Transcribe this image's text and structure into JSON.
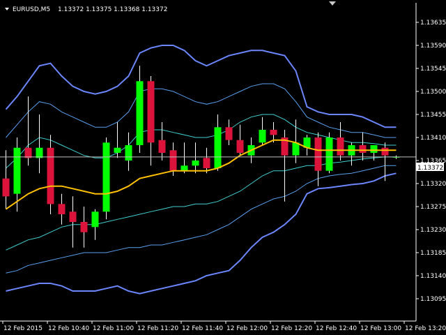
{
  "header": {
    "symbol": "EURUSD,M5",
    "ohlc": "1.13372 1.13375 1.13368 1.13372"
  },
  "current_price_label": "1.13372",
  "colors": {
    "background": "#000000",
    "axis": "#ffffff",
    "bull": "#00ff00",
    "bear": "#dc143c",
    "wick": "#ffffff",
    "ma": "#ffc000",
    "band_outer": "#6b86ff",
    "band_mid": "#5aa0f0",
    "band_inner": "#40d0d0",
    "price_line": "#c0c0c0"
  },
  "chart_data": {
    "type": "candlestick",
    "ylim": [
      1.13065,
      1.13665
    ],
    "y_ticks": [
      "1.13635",
      "1.13590",
      "1.13545",
      "1.13500",
      "1.13455",
      "1.13410",
      "1.13365",
      "1.13320",
      "1.13275",
      "1.13230",
      "1.13185",
      "1.13140",
      "1.13095"
    ],
    "x_labels": [
      "12 Feb 2015",
      "12 Feb 10:40",
      "12 Feb 11:00",
      "12 Feb 11:20",
      "12 Feb 11:40",
      "12 Feb 12:00",
      "12 Feb 12:20",
      "12 Feb 12:40",
      "12 Feb 13:00",
      "12 Feb 13:20"
    ],
    "grid": false,
    "candles": [
      {
        "o": 1.1333,
        "h": 1.13385,
        "l": 1.1327,
        "c": 1.13295
      },
      {
        "o": 1.133,
        "h": 1.1341,
        "l": 1.13265,
        "c": 1.1339
      },
      {
        "o": 1.1339,
        "h": 1.1349,
        "l": 1.13355,
        "c": 1.1337
      },
      {
        "o": 1.1337,
        "h": 1.13455,
        "l": 1.1334,
        "c": 1.1339
      },
      {
        "o": 1.1339,
        "h": 1.13415,
        "l": 1.1326,
        "c": 1.1328
      },
      {
        "o": 1.1328,
        "h": 1.133,
        "l": 1.1324,
        "c": 1.1326
      },
      {
        "o": 1.13265,
        "h": 1.13295,
        "l": 1.13195,
        "c": 1.13245
      },
      {
        "o": 1.13245,
        "h": 1.13275,
        "l": 1.13195,
        "c": 1.13225
      },
      {
        "o": 1.13235,
        "h": 1.1327,
        "l": 1.1321,
        "c": 1.13265
      },
      {
        "o": 1.13265,
        "h": 1.1341,
        "l": 1.1325,
        "c": 1.134
      },
      {
        "o": 1.1338,
        "h": 1.1344,
        "l": 1.1337,
        "c": 1.1339
      },
      {
        "o": 1.13365,
        "h": 1.1342,
        "l": 1.13345,
        "c": 1.13395
      },
      {
        "o": 1.13395,
        "h": 1.1355,
        "l": 1.1338,
        "c": 1.1352
      },
      {
        "o": 1.1352,
        "h": 1.1353,
        "l": 1.13355,
        "c": 1.134
      },
      {
        "o": 1.13405,
        "h": 1.1344,
        "l": 1.13365,
        "c": 1.1338
      },
      {
        "o": 1.13385,
        "h": 1.134,
        "l": 1.13335,
        "c": 1.13345
      },
      {
        "o": 1.13345,
        "h": 1.134,
        "l": 1.1334,
        "c": 1.13355
      },
      {
        "o": 1.13355,
        "h": 1.134,
        "l": 1.1334,
        "c": 1.13365
      },
      {
        "o": 1.1337,
        "h": 1.1339,
        "l": 1.1334,
        "c": 1.1335
      },
      {
        "o": 1.1335,
        "h": 1.13455,
        "l": 1.13345,
        "c": 1.1343
      },
      {
        "o": 1.1343,
        "h": 1.13445,
        "l": 1.13395,
        "c": 1.13405
      },
      {
        "o": 1.13405,
        "h": 1.13435,
        "l": 1.13375,
        "c": 1.1338
      },
      {
        "o": 1.13375,
        "h": 1.1341,
        "l": 1.1336,
        "c": 1.13395
      },
      {
        "o": 1.134,
        "h": 1.1345,
        "l": 1.13395,
        "c": 1.13425
      },
      {
        "o": 1.13425,
        "h": 1.1344,
        "l": 1.134,
        "c": 1.13415
      },
      {
        "o": 1.1341,
        "h": 1.13425,
        "l": 1.13285,
        "c": 1.13375
      },
      {
        "o": 1.13375,
        "h": 1.13445,
        "l": 1.1336,
        "c": 1.134
      },
      {
        "o": 1.1339,
        "h": 1.13415,
        "l": 1.13375,
        "c": 1.1341
      },
      {
        "o": 1.1341,
        "h": 1.1342,
        "l": 1.13315,
        "c": 1.13345
      },
      {
        "o": 1.13345,
        "h": 1.1342,
        "l": 1.1334,
        "c": 1.1341
      },
      {
        "o": 1.1341,
        "h": 1.1344,
        "l": 1.13365,
        "c": 1.13375
      },
      {
        "o": 1.13375,
        "h": 1.134,
        "l": 1.13355,
        "c": 1.13395
      },
      {
        "o": 1.13395,
        "h": 1.1342,
        "l": 1.13365,
        "c": 1.1338
      },
      {
        "o": 1.1338,
        "h": 1.13395,
        "l": 1.13365,
        "c": 1.13395
      },
      {
        "o": 1.1339,
        "h": 1.134,
        "l": 1.13325,
        "c": 1.13375
      },
      {
        "o": 1.13372,
        "h": 1.13375,
        "l": 1.13368,
        "c": 1.13372
      }
    ],
    "ma": [
      1.1327,
      1.13285,
      1.133,
      1.1331,
      1.13315,
      1.13315,
      1.1331,
      1.13305,
      1.133,
      1.133,
      1.13305,
      1.13315,
      1.1333,
      1.13335,
      1.1334,
      1.13345,
      1.13345,
      1.13345,
      1.13345,
      1.1335,
      1.1336,
      1.13375,
      1.13385,
      1.13395,
      1.13405,
      1.13405,
      1.134,
      1.1339,
      1.13385,
      1.13385,
      1.13385,
      1.13385,
      1.13385,
      1.13385,
      1.13385,
      1.13385
    ],
    "band_upper_outer": [
      1.13465,
      1.1349,
      1.1352,
      1.1355,
      1.13555,
      1.1353,
      1.1351,
      1.135,
      1.13495,
      1.135,
      1.1351,
      1.1353,
      1.13575,
      1.13585,
      1.1359,
      1.1359,
      1.1358,
      1.1356,
      1.1355,
      1.1356,
      1.1357,
      1.13575,
      1.1358,
      1.1358,
      1.13575,
      1.1357,
      1.1354,
      1.1347,
      1.1346,
      1.13455,
      1.13455,
      1.13455,
      1.1345,
      1.1344,
      1.1343,
      1.1343
    ],
    "band_upper_mid": [
      1.1341,
      1.13435,
      1.1346,
      1.1348,
      1.13475,
      1.1346,
      1.1345,
      1.1344,
      1.1343,
      1.1343,
      1.1344,
      1.1346,
      1.135,
      1.13505,
      1.13505,
      1.135,
      1.1349,
      1.1348,
      1.13475,
      1.1348,
      1.1349,
      1.135,
      1.1351,
      1.13515,
      1.13515,
      1.13505,
      1.1348,
      1.1345,
      1.1344,
      1.1343,
      1.13425,
      1.1342,
      1.1342,
      1.13415,
      1.1341,
      1.1341
    ],
    "band_upper_inner": [
      1.1335,
      1.1337,
      1.13395,
      1.1341,
      1.13405,
      1.13395,
      1.13385,
      1.13375,
      1.1337,
      1.1337,
      1.1338,
      1.13395,
      1.1342,
      1.13425,
      1.13425,
      1.1342,
      1.13415,
      1.1341,
      1.1341,
      1.13415,
      1.13425,
      1.1344,
      1.1345,
      1.13455,
      1.13455,
      1.13445,
      1.1343,
      1.1342,
      1.13415,
      1.1341,
      1.13405,
      1.134,
      1.134,
      1.13398,
      1.13395,
      1.13395
    ],
    "band_lower_inner": [
      1.1319,
      1.132,
      1.1321,
      1.13215,
      1.13225,
      1.13235,
      1.1324,
      1.1324,
      1.1324,
      1.13245,
      1.1325,
      1.13255,
      1.1326,
      1.13265,
      1.1327,
      1.13275,
      1.13275,
      1.1328,
      1.1328,
      1.13285,
      1.13295,
      1.13305,
      1.1332,
      1.13335,
      1.13345,
      1.13345,
      1.1335,
      1.13355,
      1.13355,
      1.1336,
      1.13362,
      1.13365,
      1.13368,
      1.1337,
      1.13372,
      1.13372
    ],
    "band_lower_mid": [
      1.13145,
      1.1315,
      1.1316,
      1.13165,
      1.1317,
      1.13175,
      1.1318,
      1.13185,
      1.13185,
      1.13185,
      1.1319,
      1.13195,
      1.13195,
      1.132,
      1.132,
      1.13205,
      1.1321,
      1.13215,
      1.1322,
      1.1323,
      1.1324,
      1.13255,
      1.1327,
      1.1328,
      1.1329,
      1.13295,
      1.13305,
      1.1332,
      1.1333,
      1.13335,
      1.13338,
      1.1334,
      1.13345,
      1.1335,
      1.13355,
      1.13355
    ],
    "band_lower_outer": [
      1.1311,
      1.13115,
      1.1312,
      1.13125,
      1.13125,
      1.1312,
      1.1311,
      1.1311,
      1.1311,
      1.13115,
      1.1312,
      1.1311,
      1.13105,
      1.1311,
      1.13115,
      1.1312,
      1.13125,
      1.1313,
      1.1314,
      1.13145,
      1.1315,
      1.1317,
      1.13195,
      1.13215,
      1.13225,
      1.1324,
      1.1326,
      1.133,
      1.1331,
      1.13312,
      1.13315,
      1.13318,
      1.1332,
      1.13325,
      1.13335,
      1.1334
    ]
  }
}
